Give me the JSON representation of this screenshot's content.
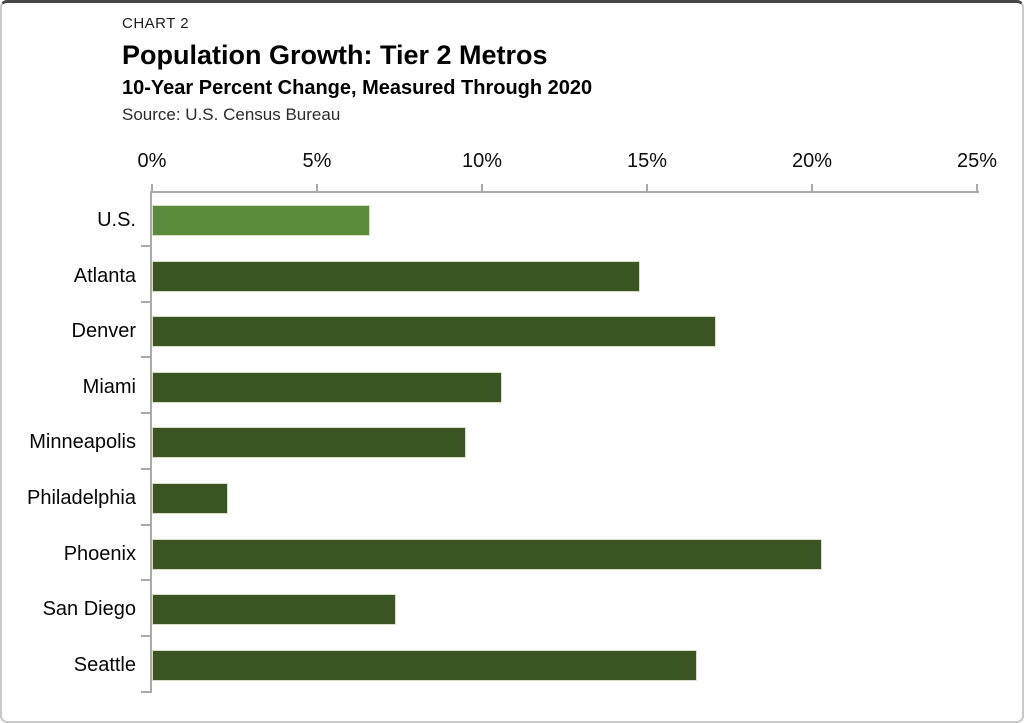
{
  "chart_data": {
    "type": "bar",
    "orientation": "horizontal",
    "chart_label": "CHART 2",
    "title": "Population Growth: Tier 2 Metros",
    "subtitle": "10-Year Percent Change, Measured Through 2020",
    "source": "Source: U.S. Census Bureau",
    "categories": [
      "U.S.",
      "Atlanta",
      "Denver",
      "Miami",
      "Minneapolis",
      "Philadelphia",
      "Phoenix",
      "San Diego",
      "Seattle"
    ],
    "values": [
      6.6,
      14.8,
      17.1,
      10.6,
      9.5,
      2.3,
      20.3,
      7.4,
      16.5
    ],
    "unit": "%",
    "x_ticks": [
      "0%",
      "5%",
      "10%",
      "15%",
      "20%",
      "25%"
    ],
    "xlim": [
      0,
      25
    ],
    "xlabel": "",
    "ylabel": "",
    "grid": false,
    "legend": false,
    "highlight_category": "U.S.",
    "colors": {
      "default_bar": "#3a5423",
      "highlight_bar": "#5a8a3c",
      "axis_line": "#aaaaaa",
      "text": "#000000"
    }
  }
}
